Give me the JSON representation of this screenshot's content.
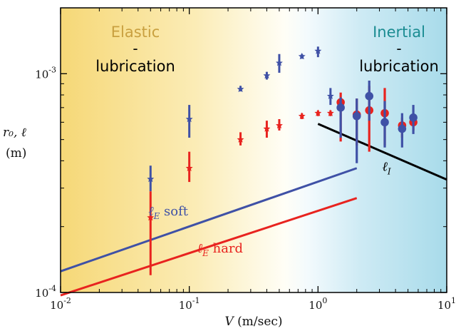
{
  "chart_data": {
    "type": "scatter",
    "x_scale": "log",
    "y_scale": "log",
    "xlim": [
      0.01,
      10
    ],
    "ylim": [
      0.0001,
      0.002
    ],
    "x_ticks": [
      {
        "value": 0.01,
        "base": "10",
        "exp": "-2"
      },
      {
        "value": 0.1,
        "base": "10",
        "exp": "-1"
      },
      {
        "value": 1,
        "base": "10",
        "exp": "0"
      },
      {
        "value": 10,
        "base": "10",
        "exp": "1"
      }
    ],
    "y_ticks": [
      {
        "value": 0.0001,
        "base": "10",
        "exp": "-4"
      },
      {
        "value": 0.001,
        "base": "10",
        "exp": "-3"
      }
    ],
    "xlabel": {
      "var": "V",
      "unit": " (m/sec)"
    },
    "ylabel": {
      "line1": "r₀, ℓ",
      "line2": "(m)"
    },
    "regions": {
      "left": {
        "title": "Elastic",
        "dash": "-",
        "sub": "lubrication",
        "title_color": "#c9a040"
      },
      "right": {
        "title": "Inertial",
        "dash": "-",
        "sub": "lubrication",
        "title_color": "#1b8c92"
      }
    },
    "colors": {
      "blue": "#3f51a6",
      "red": "#e8231f",
      "black": "#000000"
    },
    "series": [
      {
        "marker": "star",
        "color": "blue",
        "points": [
          {
            "x": 0.05,
            "y": 0.00033,
            "ylo": 0.00029,
            "yhi": 0.00038
          },
          {
            "x": 0.1,
            "y": 0.00062,
            "ylo": 0.00051,
            "yhi": 0.00072
          },
          {
            "x": 0.25,
            "y": 0.00085,
            "ylo": 0.00083,
            "yhi": 0.00088
          },
          {
            "x": 0.4,
            "y": 0.00098,
            "ylo": 0.00094,
            "yhi": 0.00102
          },
          {
            "x": 0.5,
            "y": 0.00112,
            "ylo": 0.00101,
            "yhi": 0.00123
          },
          {
            "x": 0.75,
            "y": 0.0012,
            "ylo": 0.00117,
            "yhi": 0.00123
          },
          {
            "x": 1.0,
            "y": 0.00127,
            "ylo": 0.00119,
            "yhi": 0.00133
          },
          {
            "x": 1.25,
            "y": 0.00079,
            "ylo": 0.00072,
            "yhi": 0.00086
          }
        ]
      },
      {
        "marker": "star",
        "color": "red",
        "points": [
          {
            "x": 0.05,
            "y": 0.00022,
            "ylo": 0.00012,
            "yhi": 0.00029
          },
          {
            "x": 0.1,
            "y": 0.00037,
            "ylo": 0.00032,
            "yhi": 0.00044
          },
          {
            "x": 0.25,
            "y": 0.0005,
            "ylo": 0.00047,
            "yhi": 0.00054
          },
          {
            "x": 0.4,
            "y": 0.00056,
            "ylo": 0.00051,
            "yhi": 0.00061
          },
          {
            "x": 0.5,
            "y": 0.00058,
            "ylo": 0.00055,
            "yhi": 0.00062
          },
          {
            "x": 0.75,
            "y": 0.00064,
            "ylo": 0.00062,
            "yhi": 0.00066
          },
          {
            "x": 1.0,
            "y": 0.00066,
            "ylo": 0.00064,
            "yhi": 0.00068
          },
          {
            "x": 1.25,
            "y": 0.00066,
            "ylo": 0.00064,
            "yhi": 0.00068
          }
        ]
      },
      {
        "marker": "circle",
        "color": "red",
        "points": [
          {
            "x": 1.5,
            "y": 0.00074,
            "ylo": 0.00049,
            "yhi": 0.00082
          },
          {
            "x": 2.0,
            "y": 0.00065,
            "ylo": 0.00047,
            "yhi": 0.00077
          },
          {
            "x": 2.5,
            "y": 0.00068,
            "ylo": 0.00044,
            "yhi": 0.00088
          },
          {
            "x": 3.3,
            "y": 0.00066,
            "ylo": 0.00047,
            "yhi": 0.00086
          },
          {
            "x": 4.5,
            "y": 0.00058,
            "ylo": 0.00051,
            "yhi": 0.00063
          },
          {
            "x": 5.5,
            "y": 0.0006,
            "ylo": 0.00055,
            "yhi": 0.00064
          }
        ]
      },
      {
        "marker": "circle",
        "color": "blue",
        "points": [
          {
            "x": 1.5,
            "y": 0.0007,
            "ylo": 0.00051,
            "yhi": 0.00078
          },
          {
            "x": 2.0,
            "y": 0.00064,
            "ylo": 0.00039,
            "yhi": 0.00077
          },
          {
            "x": 2.5,
            "y": 0.00079,
            "ylo": 0.00061,
            "yhi": 0.00093
          },
          {
            "x": 3.3,
            "y": 0.0006,
            "ylo": 0.00046,
            "yhi": 0.00075
          },
          {
            "x": 4.5,
            "y": 0.00056,
            "ylo": 0.00046,
            "yhi": 0.00066
          },
          {
            "x": 5.5,
            "y": 0.00063,
            "ylo": 0.00053,
            "yhi": 0.00072
          }
        ]
      }
    ],
    "lines": [
      {
        "id": "lE-soft",
        "color": "blue",
        "x": [
          0.01,
          2.0
        ],
        "y": [
          0.000125,
          0.00037
        ],
        "label": {
          "sym": "ℓ",
          "sub": "E",
          "text": " soft",
          "at_x": 0.048,
          "at_y": 0.000225
        }
      },
      {
        "id": "lE-hard",
        "color": "red",
        "x": [
          0.01,
          2.0
        ],
        "y": [
          9.7e-05,
          0.00027
        ],
        "label": {
          "sym": "ℓ",
          "sub": "E",
          "text": " hard",
          "at_x": 0.115,
          "at_y": 0.000152
        }
      },
      {
        "id": "lI",
        "color": "black",
        "x": [
          1.0,
          10
        ],
        "y": [
          0.00059,
          0.000328
        ],
        "label": {
          "sym": "ℓ",
          "sub": "I",
          "text": "",
          "at_x": 3.15,
          "at_y": 0.00036
        }
      }
    ]
  }
}
